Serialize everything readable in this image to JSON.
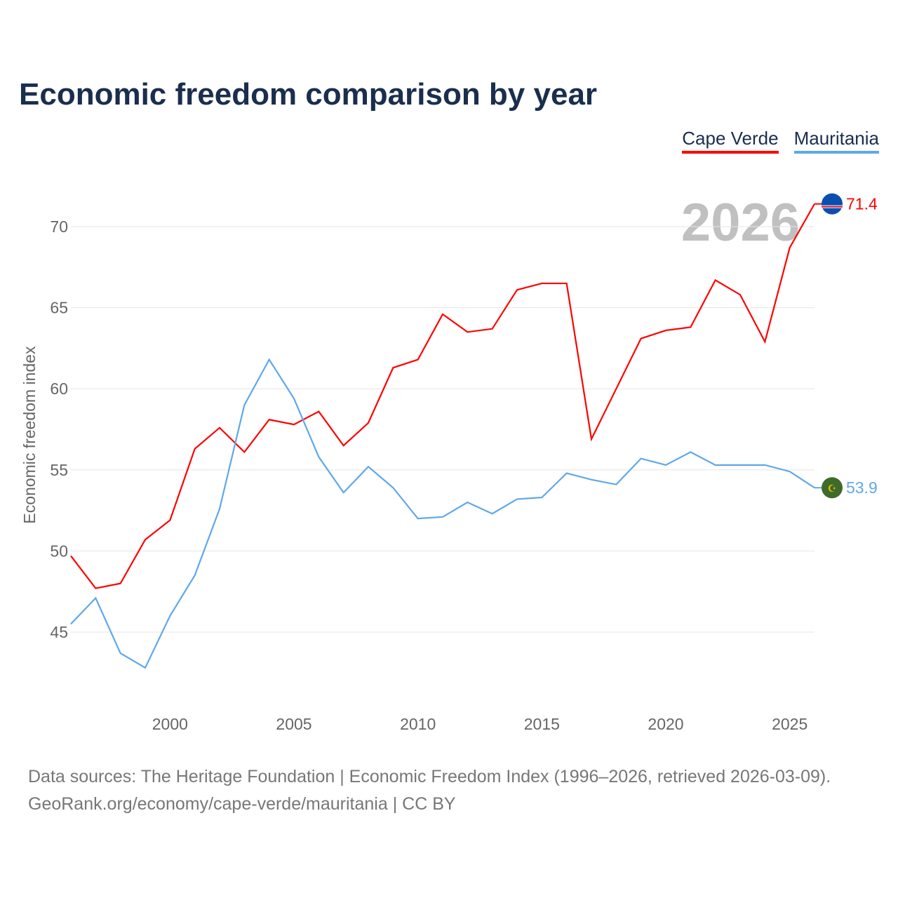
{
  "title": "Economic freedom comparison by year",
  "source_line1": "Data sources: The Heritage Foundation | Economic Freedom Index (1996–2026, retrieved 2026-03-09).",
  "source_line2": "GeoRank.org/economy/cape-verde/mauritania | CC BY",
  "chart_data": {
    "type": "line",
    "title": "Economic freedom comparison by year",
    "xlabel": "",
    "ylabel": "Economic freedom index",
    "year_label": "2026",
    "xlim": [
      1996,
      2026
    ],
    "ylim": [
      40,
      73
    ],
    "x_ticks": [
      2000,
      2005,
      2010,
      2015,
      2020,
      2025
    ],
    "y_ticks": [
      45,
      50,
      55,
      60,
      65,
      70
    ],
    "grid": true,
    "legend_position": "top-right",
    "x": [
      1996,
      1997,
      1998,
      1999,
      2000,
      2001,
      2002,
      2003,
      2004,
      2005,
      2006,
      2007,
      2008,
      2009,
      2010,
      2011,
      2012,
      2013,
      2014,
      2015,
      2016,
      2017,
      2018,
      2019,
      2020,
      2021,
      2022,
      2023,
      2024,
      2025,
      2026
    ],
    "series": [
      {
        "name": "Cape Verde",
        "color": "#ff0000",
        "end_label": "71.4",
        "values": [
          49.7,
          47.7,
          48.0,
          50.7,
          51.9,
          56.3,
          57.6,
          56.1,
          58.1,
          57.8,
          58.6,
          56.5,
          57.9,
          61.3,
          61.8,
          64.6,
          63.5,
          63.7,
          66.1,
          66.5,
          66.5,
          56.9,
          60.0,
          63.1,
          63.6,
          63.8,
          66.7,
          65.8,
          62.9,
          68.7,
          71.4
        ]
      },
      {
        "name": "Mauritania",
        "color": "#5fa8ea",
        "end_label": "53.9",
        "values": [
          45.5,
          47.1,
          43.7,
          42.8,
          46.0,
          48.5,
          52.6,
          59.0,
          61.8,
          59.4,
          55.8,
          53.6,
          55.2,
          53.9,
          52.0,
          52.1,
          53.0,
          52.3,
          53.2,
          53.3,
          54.8,
          54.4,
          54.1,
          55.7,
          55.3,
          56.1,
          55.3,
          55.3,
          55.3,
          54.9,
          53.9
        ]
      }
    ]
  }
}
